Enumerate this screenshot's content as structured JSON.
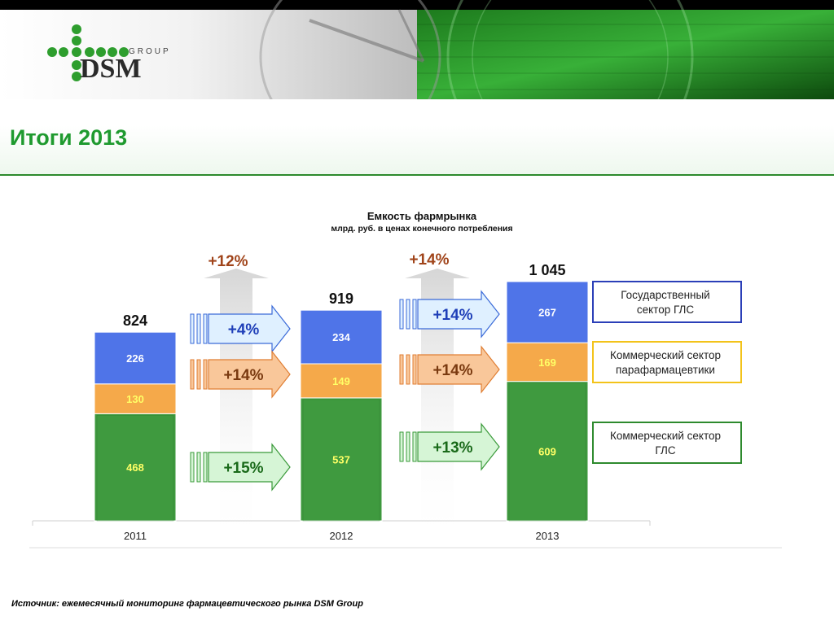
{
  "logo": {
    "brand": "DSM",
    "group_text": "GROUP"
  },
  "page_title": "Итоги 2013",
  "source_note": "Источник: ежемесячный мониторинг фармацевтического рынка DSM Group",
  "colors": {
    "state_gls": "#4f74e8",
    "commercial_parapharm": "#f5a94a",
    "commercial_gls": "#3f9a3f",
    "title_green": "#1f9a2f",
    "growth_brown": "#a0441a"
  },
  "chart_data": {
    "type": "bar",
    "stacked": true,
    "title": "Емкость фармрынка",
    "subtitle": "млрд. руб. в ценах конечного потребления",
    "categories": [
      "2011",
      "2012",
      "2013"
    ],
    "series": [
      {
        "name": "Коммерческий сектор ГЛС",
        "values": [
          468,
          537,
          609
        ],
        "color": "#3f9a3f"
      },
      {
        "name": "Коммерческий сектор парафармацевтики",
        "values": [
          130,
          149,
          169
        ],
        "color": "#f5a94a"
      },
      {
        "name": "Государственный сектор ГЛС",
        "values": [
          226,
          234,
          267
        ],
        "color": "#4f74e8"
      }
    ],
    "totals": [
      "824",
      "919",
      "1 045"
    ],
    "total_growth": [
      "+12%",
      "+14%"
    ],
    "segment_growth": [
      {
        "state_gls": "+4%",
        "commercial_parapharm": "+14%",
        "commercial_gls": "+15%"
      },
      {
        "state_gls": "+14%",
        "commercial_parapharm": "+14%",
        "commercial_gls": "+13%"
      }
    ],
    "legend_placement": "right",
    "ylim": [
      0,
      1045
    ],
    "grid": false
  }
}
